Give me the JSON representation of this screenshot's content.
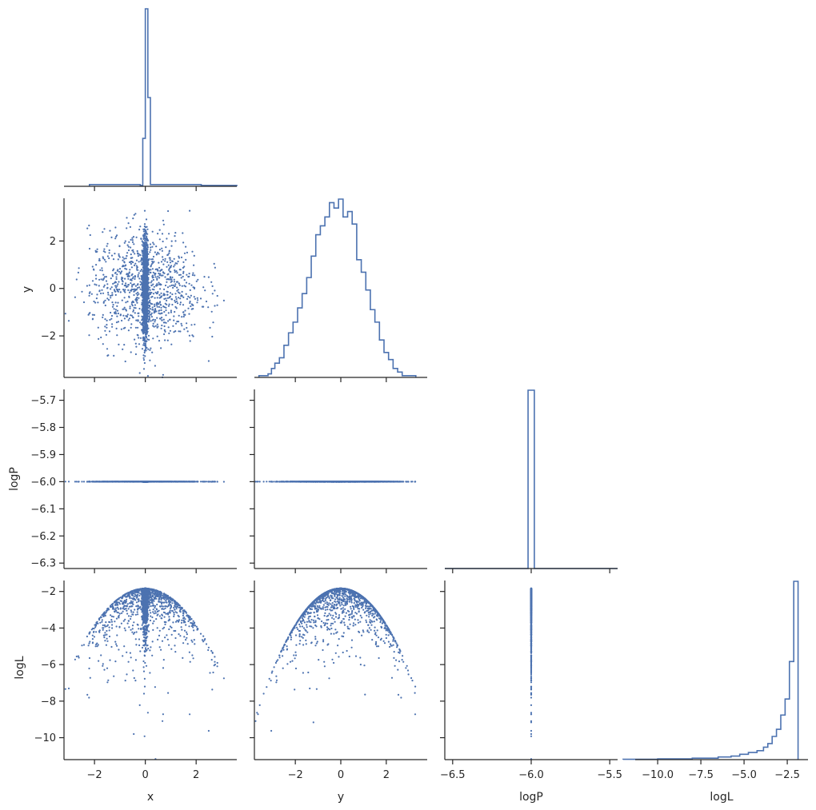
{
  "chart_data": {
    "type": "corner",
    "color": "#4c72b0",
    "params": [
      "x",
      "y",
      "logP",
      "logL"
    ],
    "ranges": {
      "x": [
        -3.2,
        3.6
      ],
      "y": [
        -3.8,
        3.8
      ],
      "logP": [
        -6.55,
        -5.45
      ],
      "logL": [
        -11.3,
        -1.3
      ]
    },
    "yranges": {
      "y": [
        -3.75,
        3.8
      ],
      "logP": [
        -6.32,
        -5.66
      ],
      "logL": [
        -11.2,
        -1.4
      ]
    },
    "ticks": {
      "x": [
        -2,
        0,
        2
      ],
      "y": [
        -2,
        0,
        2
      ],
      "logP": [
        -6.5,
        -6.0,
        -5.5
      ],
      "logL": [
        -10.0,
        -7.5,
        -5.0,
        -2.5
      ],
      "y_row": [
        -2,
        0,
        2
      ],
      "logP_row": [
        -6.3,
        -6.2,
        -6.1,
        -6.0,
        -5.9,
        -5.8,
        -5.7
      ],
      "logL_row": [
        -10,
        -8,
        -6,
        -4,
        -2
      ]
    },
    "tick_labels": {
      "x": [
        "−2",
        "0",
        "2"
      ],
      "y": [
        "−2",
        "0",
        "2"
      ],
      "logP": [
        "−6.5",
        "−6.0",
        "−5.5"
      ],
      "logL": [
        "−10.0",
        "−7.5",
        "−5.0",
        "−2.5"
      ],
      "y_row": [
        "−2",
        "0",
        "2"
      ],
      "logP_row": [
        "−6.3",
        "−6.2",
        "−6.1",
        "−6.0",
        "−5.9",
        "−5.8",
        "−5.7"
      ],
      "logL_row": [
        "−10",
        "−8",
        "−6",
        "−4",
        "−2"
      ]
    },
    "axis_labels": {
      "x": "x",
      "y": "y",
      "logP": "logP",
      "logL": "logL"
    },
    "samples": {
      "logP_value": -6.0,
      "n_concentrated": 2000,
      "n_spread": 1000
    },
    "histograms": {
      "x": {
        "edges": [
          -2.2,
          -0.2,
          -0.1,
          0.0,
          0.1,
          0.2,
          2.2,
          3.6
        ],
        "heights": [
          0.01,
          0.005,
          0.27,
          1.0,
          0.5,
          0.01,
          0.005
        ]
      },
      "y": {
        "x": [
          -3.5,
          -3.3,
          -3.1,
          -3.0,
          -2.8,
          -2.6,
          -2.4,
          -2.2,
          -2.0,
          -1.8,
          -1.6,
          -1.4,
          -1.2,
          -1.0,
          -0.8,
          -0.6,
          -0.4,
          -0.2,
          0.0,
          0.2,
          0.4,
          0.6,
          0.8,
          1.0,
          1.2,
          1.4,
          1.6,
          1.8,
          2.0,
          2.2,
          2.4,
          2.6,
          2.8,
          3.0,
          3.2
        ],
        "values": [
          0.01,
          0.01,
          0.02,
          0.05,
          0.08,
          0.11,
          0.18,
          0.25,
          0.31,
          0.39,
          0.47,
          0.56,
          0.68,
          0.8,
          0.85,
          0.9,
          0.98,
          0.95,
          1.0,
          0.9,
          0.93,
          0.86,
          0.66,
          0.59,
          0.49,
          0.38,
          0.31,
          0.21,
          0.14,
          0.1,
          0.05,
          0.03,
          0.01,
          0.01,
          0.01
        ]
      },
      "logP": {
        "edges": [
          -6.55,
          -6.02,
          -5.98,
          -5.45
        ],
        "heights": [
          0.0,
          1.0,
          0.0
        ]
      },
      "logL": {
        "x": [
          -11.0,
          -9.0,
          -7.0,
          -6.0,
          -5.5,
          -5.0,
          -4.5,
          -4.0,
          -3.75,
          -3.5,
          -3.25,
          -3.0,
          -2.75,
          -2.5,
          -2.25,
          -2.0
        ],
        "values": [
          0.002,
          0.004,
          0.008,
          0.015,
          0.02,
          0.03,
          0.04,
          0.05,
          0.07,
          0.09,
          0.13,
          0.17,
          0.25,
          0.34,
          0.55,
          1.0
        ]
      }
    }
  }
}
